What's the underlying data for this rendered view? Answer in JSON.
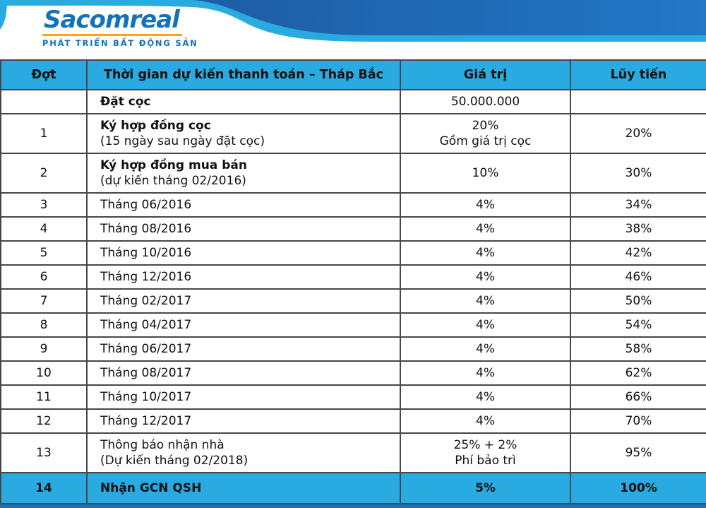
{
  "brand": {
    "name": "Sacomreal",
    "tagline": "PHÁT TRIỂN BẤT ĐỘNG SẢN"
  },
  "colors": {
    "accent_cyan": "#29abe2",
    "wave_dark_left": "#1e5ca3",
    "wave_dark_right": "#2277c6",
    "logo_blue": "#1472b8",
    "logo_underline_orange": "#f9a51a",
    "bottom_bar_blue": "#1d74b8",
    "grid_border": "#474747",
    "text": "#111111"
  },
  "table": {
    "headers": [
      "Đợt",
      "Thời gian dự kiến thanh toán – Tháp Bắc",
      "Giá trị",
      "Lũy tiến"
    ],
    "rows": [
      {
        "stage": "",
        "time": "Đặt cọc",
        "time_note": "",
        "time_bold": true,
        "value": "50.000.000",
        "value_note": "",
        "cumulative": "",
        "highlight": false
      },
      {
        "stage": "1",
        "time": "Ký hợp đồng cọc",
        "time_note": "(15 ngày sau ngày đặt cọc)",
        "time_bold": true,
        "value": "20%",
        "value_note": "Gồm giá trị cọc",
        "cumulative": "20%",
        "highlight": false
      },
      {
        "stage": "2",
        "time": "Ký hợp đồng mua bán",
        "time_note": "(dự kiến tháng 02/2016)",
        "time_bold": true,
        "value": "10%",
        "value_note": "",
        "cumulative": "30%",
        "highlight": false
      },
      {
        "stage": "3",
        "time": "Tháng 06/2016",
        "time_note": "",
        "time_bold": false,
        "value": "4%",
        "value_note": "",
        "cumulative": "34%",
        "highlight": false
      },
      {
        "stage": "4",
        "time": "Tháng 08/2016",
        "time_note": "",
        "time_bold": false,
        "value": "4%",
        "value_note": "",
        "cumulative": "38%",
        "highlight": false
      },
      {
        "stage": "5",
        "time": "Tháng 10/2016",
        "time_note": "",
        "time_bold": false,
        "value": "4%",
        "value_note": "",
        "cumulative": "42%",
        "highlight": false
      },
      {
        "stage": "6",
        "time": "Tháng 12/2016",
        "time_note": "",
        "time_bold": false,
        "value": "4%",
        "value_note": "",
        "cumulative": "46%",
        "highlight": false
      },
      {
        "stage": "7",
        "time": "Tháng 02/2017",
        "time_note": "",
        "time_bold": false,
        "value": "4%",
        "value_note": "",
        "cumulative": "50%",
        "highlight": false
      },
      {
        "stage": "8",
        "time": "Tháng 04/2017",
        "time_note": "",
        "time_bold": false,
        "value": "4%",
        "value_note": "",
        "cumulative": "54%",
        "highlight": false
      },
      {
        "stage": "9",
        "time": "Tháng 06/2017",
        "time_note": "",
        "time_bold": false,
        "value": "4%",
        "value_note": "",
        "cumulative": "58%",
        "highlight": false
      },
      {
        "stage": "10",
        "time": "Tháng 08/2017",
        "time_note": "",
        "time_bold": false,
        "value": "4%",
        "value_note": "",
        "cumulative": "62%",
        "highlight": false
      },
      {
        "stage": "11",
        "time": "Tháng 10/2017",
        "time_note": "",
        "time_bold": false,
        "value": "4%",
        "value_note": "",
        "cumulative": "66%",
        "highlight": false
      },
      {
        "stage": "12",
        "time": "Tháng 12/2017",
        "time_note": "",
        "time_bold": false,
        "value": "4%",
        "value_note": "",
        "cumulative": "70%",
        "highlight": false
      },
      {
        "stage": "13",
        "time": "Thông báo nhận nhà",
        "time_note": "(Dự kiến tháng 02/2018)",
        "time_bold": false,
        "value": "25% + 2%",
        "value_note": "Phí bảo trì",
        "cumulative": "95%",
        "highlight": false
      },
      {
        "stage": "14",
        "time": "Nhận GCN QSH",
        "time_note": "",
        "time_bold": true,
        "value": "5%",
        "value_note": "",
        "cumulative": "100%",
        "highlight": true
      }
    ]
  }
}
